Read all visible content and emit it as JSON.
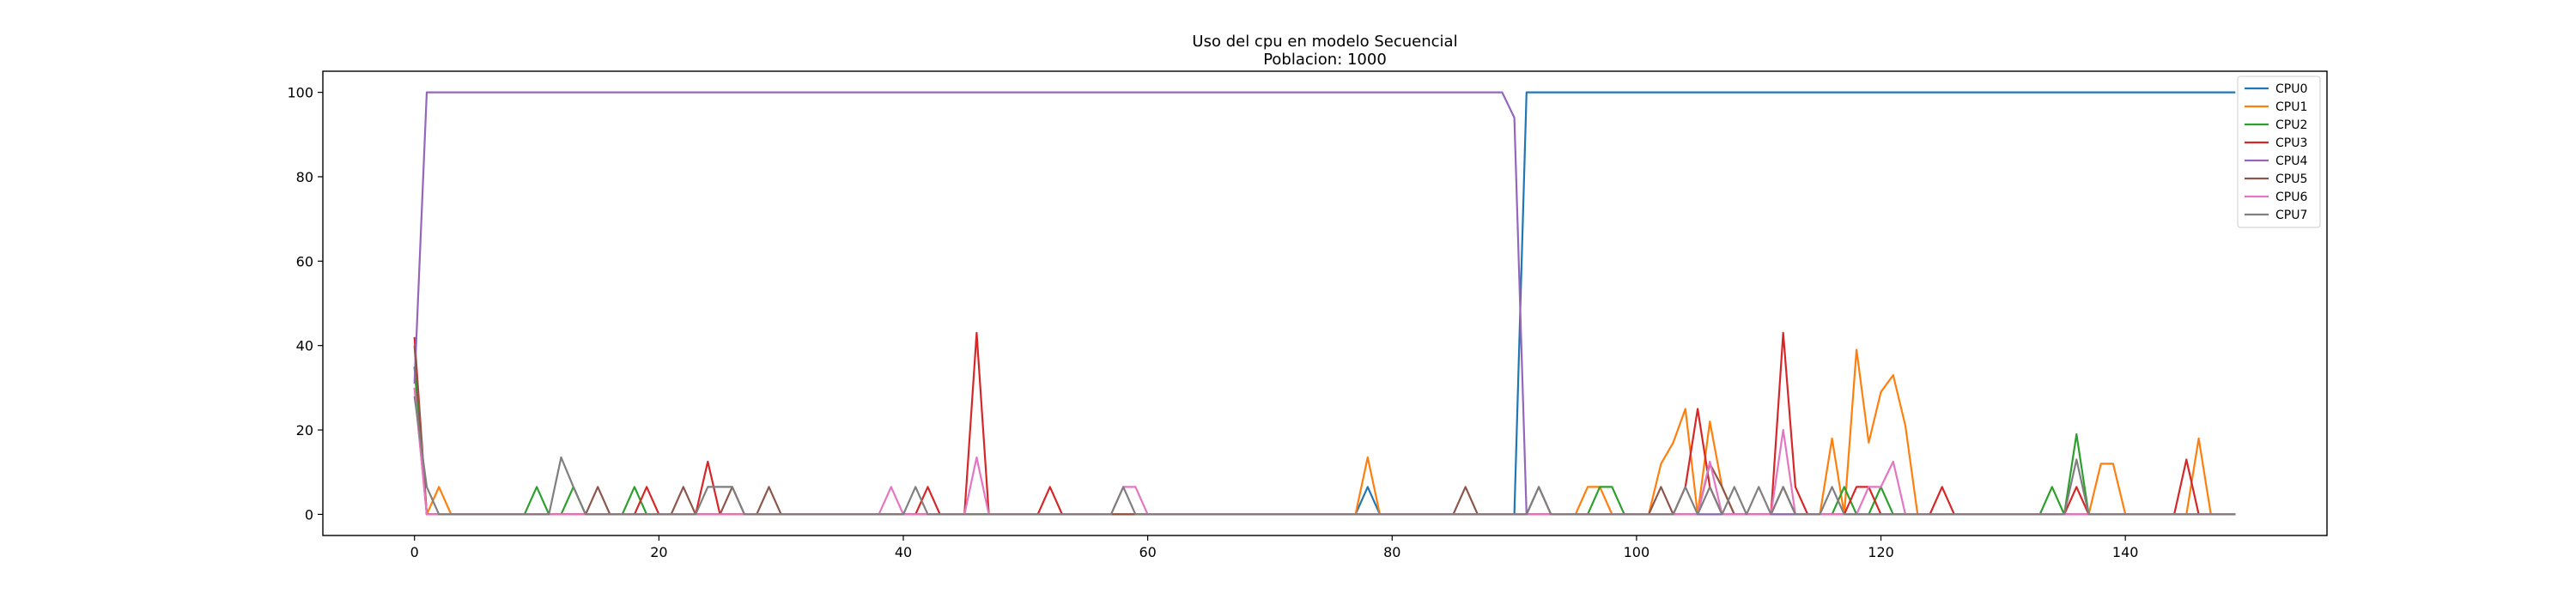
{
  "chart_data": {
    "type": "line",
    "title": "Uso del cpu en modelo Secuencial",
    "subtitle": "Poblacion: 1000",
    "xlabel": "",
    "ylabel": "",
    "xlim": [
      -7.5,
      156.5
    ],
    "ylim": [
      -5,
      105
    ],
    "xticks": [
      0,
      20,
      40,
      60,
      80,
      100,
      120,
      140
    ],
    "yticks": [
      0,
      20,
      40,
      60,
      80,
      100
    ],
    "grid": false,
    "legend_position": "top-right",
    "series": [
      {
        "name": "CPU0",
        "color": "#1f77b4",
        "points": [
          [
            0,
            35
          ],
          [
            1,
            0
          ],
          [
            77,
            0
          ],
          [
            78,
            6.5
          ],
          [
            79,
            0
          ],
          [
            90,
            0
          ],
          [
            91,
            100
          ],
          [
            149,
            100
          ]
        ]
      },
      {
        "name": "CPU1",
        "color": "#ff7f0e",
        "points": [
          [
            0,
            30
          ],
          [
            1,
            0
          ],
          [
            2,
            6.5
          ],
          [
            3,
            0
          ],
          [
            77,
            0
          ],
          [
            78,
            13.5
          ],
          [
            79,
            0
          ],
          [
            95,
            0
          ],
          [
            96,
            6.5
          ],
          [
            97,
            6.5
          ],
          [
            98,
            0
          ],
          [
            101,
            0
          ],
          [
            102,
            12
          ],
          [
            103,
            17
          ],
          [
            104,
            25
          ],
          [
            105,
            0
          ],
          [
            106,
            22
          ],
          [
            107,
            6.5
          ],
          [
            108,
            0
          ],
          [
            115,
            0
          ],
          [
            116,
            18
          ],
          [
            117,
            0
          ],
          [
            118,
            39
          ],
          [
            119,
            17
          ],
          [
            120,
            29
          ],
          [
            121,
            33
          ],
          [
            122,
            21
          ],
          [
            123,
            0
          ],
          [
            137,
            0
          ],
          [
            138,
            12
          ],
          [
            139,
            12
          ],
          [
            140,
            0
          ],
          [
            145,
            0
          ],
          [
            146,
            18
          ],
          [
            147,
            0
          ],
          [
            149,
            0
          ]
        ]
      },
      {
        "name": "CPU2",
        "color": "#2ca02c",
        "points": [
          [
            0,
            35
          ],
          [
            1,
            0
          ],
          [
            9,
            0
          ],
          [
            10,
            6.5
          ],
          [
            11,
            0
          ],
          [
            12,
            0
          ],
          [
            13,
            6.5
          ],
          [
            14,
            0
          ],
          [
            17,
            0
          ],
          [
            18,
            6.5
          ],
          [
            19,
            0
          ],
          [
            96,
            0
          ],
          [
            97,
            6.5
          ],
          [
            98,
            6.5
          ],
          [
            99,
            0
          ],
          [
            116,
            0
          ],
          [
            117,
            6.5
          ],
          [
            118,
            0
          ],
          [
            119,
            0
          ],
          [
            120,
            6.5
          ],
          [
            121,
            0
          ],
          [
            133,
            0
          ],
          [
            134,
            6.5
          ],
          [
            135,
            0
          ],
          [
            136,
            19
          ],
          [
            137,
            0
          ],
          [
            149,
            0
          ]
        ]
      },
      {
        "name": "CPU3",
        "color": "#d62728",
        "points": [
          [
            0,
            42
          ],
          [
            1,
            0
          ],
          [
            18,
            0
          ],
          [
            19,
            6.5
          ],
          [
            20,
            0
          ],
          [
            23,
            0
          ],
          [
            24,
            12.5
          ],
          [
            25,
            0
          ],
          [
            41,
            0
          ],
          [
            42,
            6.5
          ],
          [
            43,
            0
          ],
          [
            45,
            0
          ],
          [
            46,
            43
          ],
          [
            47,
            0
          ],
          [
            51,
            0
          ],
          [
            52,
            6.5
          ],
          [
            53,
            0
          ],
          [
            103,
            0
          ],
          [
            104,
            6.5
          ],
          [
            105,
            25
          ],
          [
            106,
            6.5
          ],
          [
            107,
            0
          ],
          [
            111,
            0
          ],
          [
            112,
            43
          ],
          [
            113,
            6.5
          ],
          [
            114,
            0
          ],
          [
            117,
            0
          ],
          [
            118,
            6.5
          ],
          [
            119,
            6.5
          ],
          [
            120,
            0
          ],
          [
            124,
            0
          ],
          [
            125,
            6.5
          ],
          [
            126,
            0
          ],
          [
            135,
            0
          ],
          [
            136,
            6.5
          ],
          [
            137,
            0
          ],
          [
            144,
            0
          ],
          [
            145,
            13
          ],
          [
            146,
            0
          ],
          [
            149,
            0
          ]
        ]
      },
      {
        "name": "CPU4",
        "color": "#9467bd",
        "points": [
          [
            0,
            31
          ],
          [
            1,
            100
          ],
          [
            89,
            100
          ],
          [
            90,
            94
          ],
          [
            91,
            0
          ],
          [
            149,
            0
          ]
        ]
      },
      {
        "name": "CPU5",
        "color": "#8c564b",
        "points": [
          [
            0,
            40
          ],
          [
            1,
            0
          ],
          [
            14,
            0
          ],
          [
            15,
            6.5
          ],
          [
            16,
            0
          ],
          [
            21,
            0
          ],
          [
            22,
            6.5
          ],
          [
            23,
            0
          ],
          [
            25,
            0
          ],
          [
            26,
            6.5
          ],
          [
            27,
            0
          ],
          [
            28,
            0
          ],
          [
            29,
            6.5
          ],
          [
            30,
            0
          ],
          [
            85,
            0
          ],
          [
            86,
            6.5
          ],
          [
            87,
            0
          ],
          [
            91,
            0
          ],
          [
            92,
            6.5
          ],
          [
            93,
            0
          ],
          [
            101,
            0
          ],
          [
            102,
            6.5
          ],
          [
            103,
            0
          ],
          [
            105,
            0
          ],
          [
            106,
            12
          ],
          [
            107,
            6.5
          ],
          [
            108,
            0
          ],
          [
            111,
            0
          ],
          [
            112,
            6.5
          ],
          [
            113,
            0
          ],
          [
            149,
            0
          ]
        ]
      },
      {
        "name": "CPU6",
        "color": "#e377c2",
        "points": [
          [
            0,
            30
          ],
          [
            1,
            0
          ],
          [
            38,
            0
          ],
          [
            39,
            6.5
          ],
          [
            40,
            0
          ],
          [
            45,
            0
          ],
          [
            46,
            13.5
          ],
          [
            47,
            0
          ],
          [
            57,
            0
          ],
          [
            58,
            6.5
          ],
          [
            59,
            6.5
          ],
          [
            60,
            0
          ],
          [
            105,
            0
          ],
          [
            106,
            12.5
          ],
          [
            107,
            0
          ],
          [
            111,
            0
          ],
          [
            112,
            20
          ],
          [
            113,
            0
          ],
          [
            118,
            0
          ],
          [
            119,
            6.5
          ],
          [
            120,
            6.5
          ],
          [
            121,
            12.5
          ],
          [
            122,
            0
          ],
          [
            149,
            0
          ]
        ]
      },
      {
        "name": "CPU7",
        "color": "#7f7f7f",
        "points": [
          [
            0,
            28
          ],
          [
            1,
            6.5
          ],
          [
            2,
            0
          ],
          [
            11,
            0
          ],
          [
            12,
            13.5
          ],
          [
            13,
            6.5
          ],
          [
            14,
            0
          ],
          [
            23,
            0
          ],
          [
            24,
            6.5
          ],
          [
            25,
            6.5
          ],
          [
            26,
            6.5
          ],
          [
            27,
            0
          ],
          [
            40,
            0
          ],
          [
            41,
            6.5
          ],
          [
            42,
            0
          ],
          [
            57,
            0
          ],
          [
            58,
            6.5
          ],
          [
            59,
            0
          ],
          [
            91,
            0
          ],
          [
            92,
            6.5
          ],
          [
            93,
            0
          ],
          [
            103,
            0
          ],
          [
            104,
            6.5
          ],
          [
            105,
            0
          ],
          [
            106,
            6.5
          ],
          [
            107,
            0
          ],
          [
            108,
            6.5
          ],
          [
            109,
            0
          ],
          [
            110,
            6.5
          ],
          [
            111,
            0
          ],
          [
            112,
            6.5
          ],
          [
            113,
            0
          ],
          [
            115,
            0
          ],
          [
            116,
            6.5
          ],
          [
            117,
            0
          ],
          [
            135,
            0
          ],
          [
            136,
            13
          ],
          [
            137,
            0
          ],
          [
            149,
            0
          ]
        ]
      }
    ]
  }
}
